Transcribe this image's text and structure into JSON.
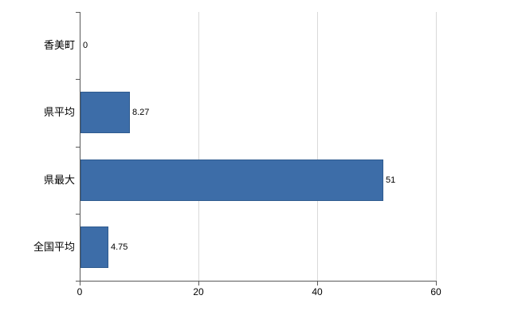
{
  "chart_data": {
    "type": "bar",
    "orientation": "horizontal",
    "title": "",
    "xlabel": "",
    "ylabel": "",
    "categories": [
      "香美町",
      "県平均",
      "県最大",
      "全国平均"
    ],
    "values": [
      0,
      8.27,
      51,
      4.75
    ],
    "value_labels": [
      "0",
      "8.27",
      "51",
      "4.75"
    ],
    "xlim": [
      0,
      60
    ],
    "xticks": [
      0,
      20,
      40,
      60
    ],
    "xtick_labels": [
      "0",
      "20",
      "40",
      "60"
    ],
    "grid": "vertical",
    "legend": "none",
    "colors": {
      "bar_fill": "#3d6da8",
      "bar_border": "#2f5b8f",
      "gridline": "#d9d9d9",
      "axis": "#595959",
      "text": "#000000",
      "background": "#ffffff"
    }
  }
}
